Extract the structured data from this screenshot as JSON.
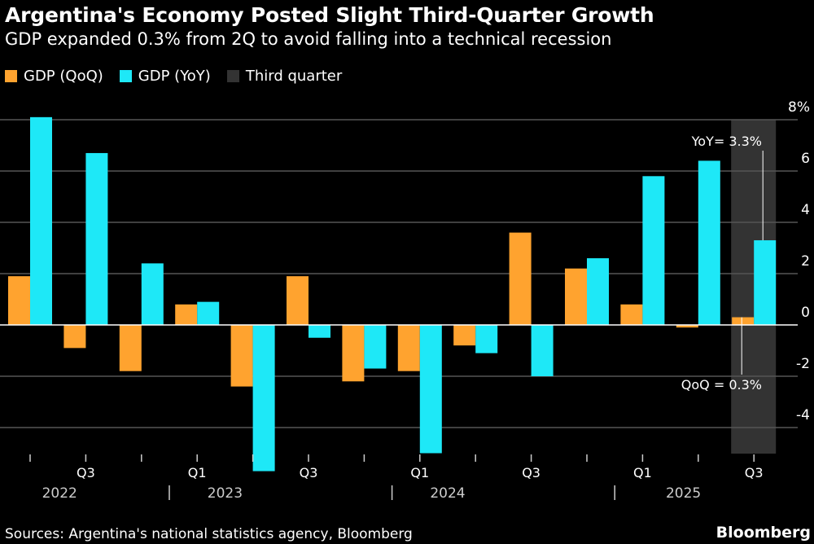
{
  "title": "Argentina's Economy Posted Slight Third-Quarter Growth",
  "subtitle": "GDP expanded 0.3% from 2Q to avoid falling into a technical recession",
  "source": "Sources: Argentina's national statistics agency, Bloomberg",
  "brand": "Bloomberg",
  "colors": {
    "qoq": "#ffa32f",
    "yoy": "#1ee8f7",
    "highlight": "#333333"
  },
  "chart_data": {
    "type": "bar",
    "quarters": [
      "Q2 2022",
      "Q3 2022",
      "Q4 2022",
      "Q1 2023",
      "Q2 2023",
      "Q3 2023",
      "Q4 2023",
      "Q1 2024",
      "Q2 2024",
      "Q3 2024",
      "Q4 2024",
      "Q1 2025",
      "Q2 2025",
      "Q3 2025"
    ],
    "series": [
      {
        "name": "GDP (QoQ)",
        "values": [
          1.9,
          -0.9,
          -1.8,
          0.8,
          -2.4,
          1.9,
          -2.2,
          -1.8,
          -0.8,
          3.6,
          2.2,
          0.8,
          -0.1,
          0.3
        ]
      },
      {
        "name": "GDP (YoY)",
        "values": [
          8.1,
          6.7,
          2.4,
          0.9,
          -5.7,
          -0.5,
          -1.7,
          -5.0,
          -1.1,
          -2.0,
          2.6,
          5.8,
          6.4,
          3.3
        ]
      }
    ],
    "legend": [
      "GDP (QoQ)",
      "GDP (YoY)",
      "Third quarter"
    ],
    "highlight_quarter": "Q3 2025",
    "ylim": [
      -5.2,
      8
    ],
    "yticks": [
      8,
      6,
      4,
      2,
      0,
      -2,
      -4
    ],
    "ytick_labels": [
      "8%",
      "6",
      "4",
      "2",
      "0",
      "-2",
      "-4"
    ],
    "xtick_labels": [
      {
        "quarter": "Q3 2022",
        "label": "Q3"
      },
      {
        "quarter": "Q1 2023",
        "label": "Q1"
      },
      {
        "quarter": "Q3 2023",
        "label": "Q3"
      },
      {
        "quarter": "Q1 2024",
        "label": "Q1"
      },
      {
        "quarter": "Q3 2024",
        "label": "Q3"
      },
      {
        "quarter": "Q1 2025",
        "label": "Q1"
      },
      {
        "quarter": "Q3 2025",
        "label": "Q3"
      }
    ],
    "years": [
      "2022",
      "2023",
      "2024",
      "2025"
    ],
    "annotations": {
      "yoy": "YoY= 3.3%",
      "qoq": "QoQ = 0.3%"
    },
    "grid": true,
    "legend_position": "top-left",
    "yaxis_side": "right"
  }
}
